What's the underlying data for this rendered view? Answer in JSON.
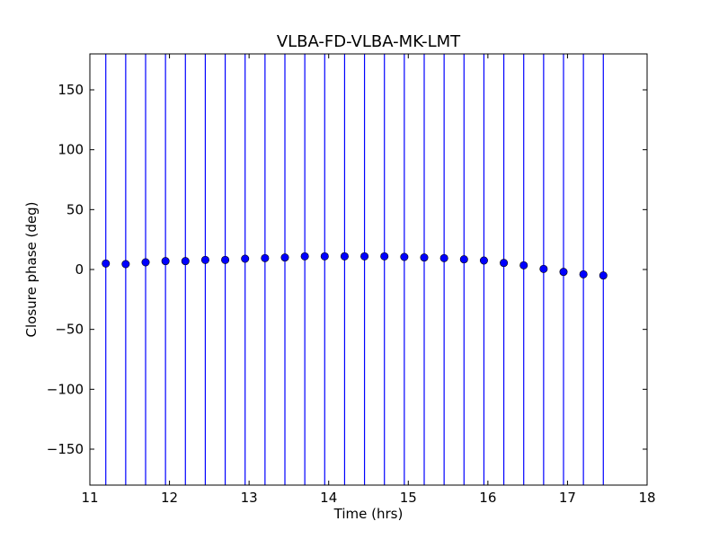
{
  "chart_data": {
    "type": "scatter",
    "title": "VLBA-FD-VLBA-MK-LMT",
    "xlabel": "Time (hrs)",
    "ylabel": "Closure phase (deg)",
    "xlim": [
      11,
      18
    ],
    "ylim": [
      -180,
      180
    ],
    "xticks": [
      11,
      12,
      13,
      14,
      15,
      16,
      17,
      18
    ],
    "xtick_labels": [
      "11",
      "12",
      "13",
      "14",
      "15",
      "16",
      "17",
      "18"
    ],
    "yticks": [
      -150,
      -100,
      -50,
      0,
      50,
      100,
      150
    ],
    "ytick_labels": [
      "−150",
      "−100",
      "−50",
      "0",
      "50",
      "100",
      "150"
    ],
    "grid": false,
    "error_bars": "vertical, spanning full y range",
    "series": [
      {
        "x": [
          11.2,
          11.45,
          11.7,
          11.95,
          12.2,
          12.45,
          12.7,
          12.95,
          13.2,
          13.45,
          13.7,
          13.95,
          14.2,
          14.45,
          14.7,
          14.95,
          15.2,
          15.45,
          15.7,
          15.95,
          16.2,
          16.45,
          16.7,
          16.95,
          17.2,
          17.45
        ],
        "y": [
          5,
          4.5,
          6,
          7,
          7,
          8,
          8,
          9,
          9.5,
          10,
          11,
          11,
          11,
          11,
          11,
          10.5,
          10,
          9.5,
          8.5,
          7.5,
          5.5,
          3.5,
          0.5,
          -2,
          -4,
          -5
        ],
        "color": "#0000ff",
        "marker": "circle"
      }
    ]
  }
}
